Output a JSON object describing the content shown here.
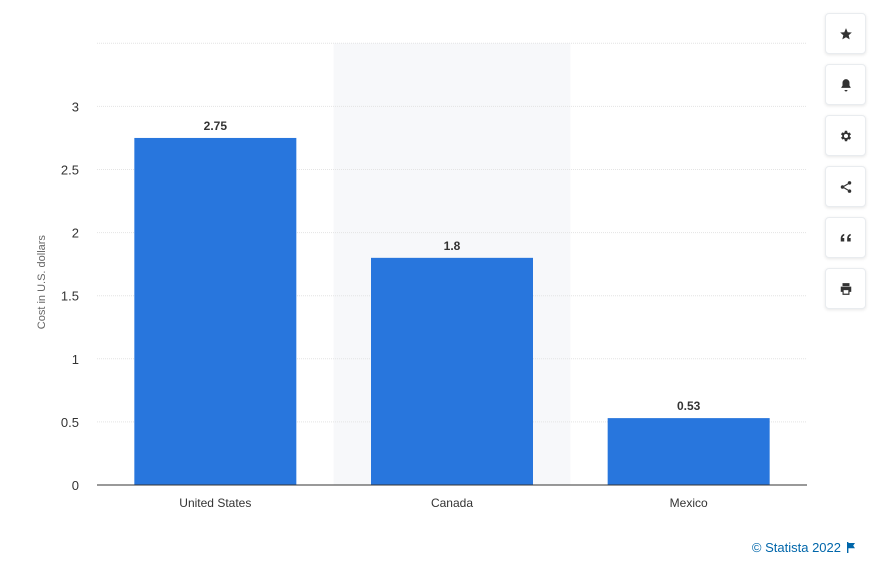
{
  "chart_data": {
    "type": "bar",
    "categories": [
      "United States",
      "Canada",
      "Mexico"
    ],
    "values": [
      2.75,
      1.8,
      0.53
    ],
    "data_labels": [
      "2.75",
      "1.8",
      "0.53"
    ],
    "ylabel": "Cost in U.S. dollars",
    "ylim": [
      0,
      3.5
    ],
    "yticks": [
      "0",
      "0.5",
      "1",
      "1.5",
      "2",
      "2.5",
      "3"
    ],
    "bar_color": "#2876dd",
    "highlight_category_band": "Canada",
    "grid": true,
    "legend": "none"
  },
  "toolbar": {
    "icons": [
      "star-icon",
      "bell-icon",
      "gear-icon",
      "share-icon",
      "quote-icon",
      "print-icon"
    ]
  },
  "credit": {
    "text": "© Statista 2022",
    "icon": "flag-icon",
    "color": "#0066aa"
  }
}
